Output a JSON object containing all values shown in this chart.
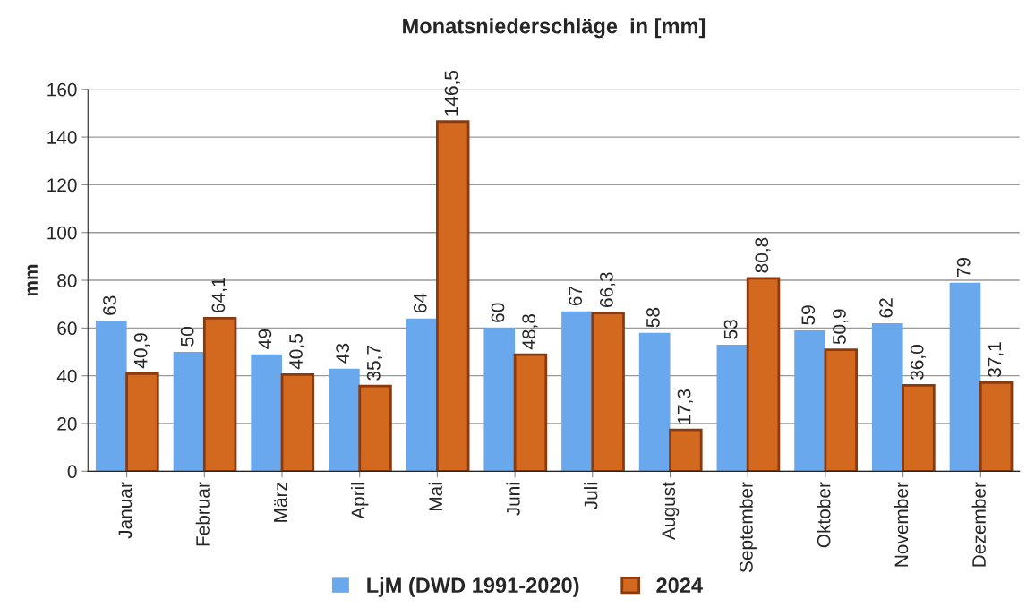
{
  "chart_data": {
    "type": "bar",
    "title": "Monatsniederschläge  in [mm]",
    "ylabel": "mm",
    "categories": [
      "Januar",
      "Februar",
      "März",
      "April",
      "Mai",
      "Juni",
      "Juli",
      "August",
      "September",
      "Oktober",
      "November",
      "Dezember"
    ],
    "series": [
      {
        "name": "LjM (DWD 1991-2020)",
        "color": "#6aa8ee",
        "values": [
          63,
          50,
          49,
          43,
          64,
          60,
          67,
          58,
          53,
          59,
          62,
          79
        ],
        "value_labels": [
          "63",
          "50",
          "49",
          "43",
          "64",
          "60",
          "67",
          "58",
          "53",
          "59",
          "62",
          "79"
        ]
      },
      {
        "name": "2024",
        "color": "#d2691e",
        "values": [
          40.9,
          64.1,
          40.5,
          35.7,
          146.5,
          48.8,
          66.3,
          17.3,
          80.8,
          50.9,
          36.0,
          37.1
        ],
        "value_labels": [
          "40,9",
          "64,1",
          "40,5",
          "35,7",
          "146,5",
          "48,8",
          "66,3",
          "17,3",
          "80,8",
          "50,9",
          "36,0",
          "37,1"
        ]
      }
    ],
    "ylim": [
      0,
      160
    ],
    "yticks": [
      0,
      20,
      40,
      60,
      80,
      100,
      120,
      140,
      160
    ],
    "grid": "y",
    "legend": "bottom"
  }
}
